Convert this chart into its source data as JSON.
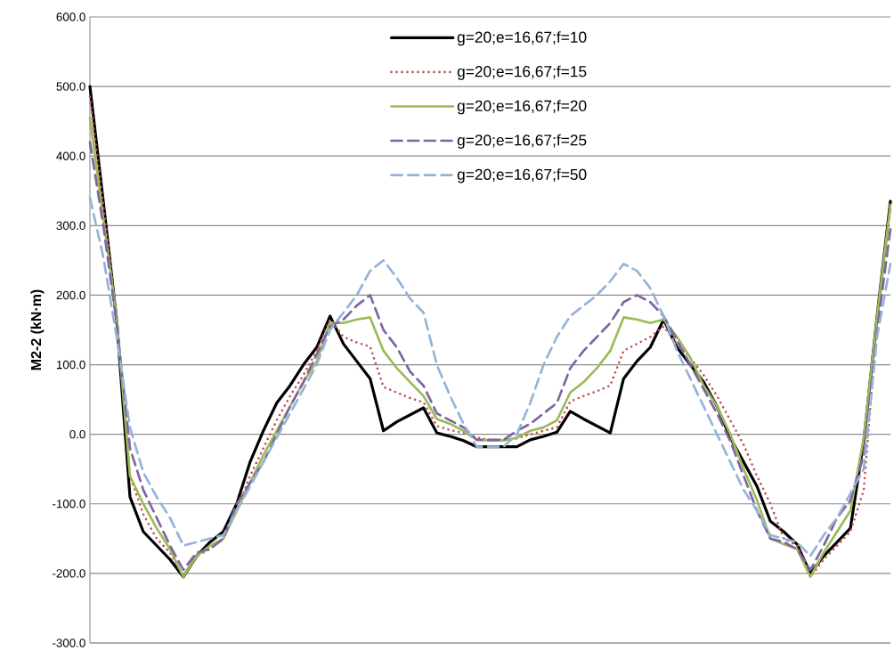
{
  "chart_data": {
    "type": "line",
    "ylabel": "M2-2 (kN·m)",
    "categories": [
      null,
      null,
      null,
      null,
      null,
      null,
      null,
      null,
      null,
      null,
      null,
      null,
      null,
      null,
      null,
      null,
      null,
      null,
      null,
      null,
      null,
      null,
      null,
      null,
      null,
      null,
      null,
      null,
      null,
      null,
      null,
      null,
      null,
      null,
      null,
      null,
      null,
      null,
      null,
      null,
      null,
      null,
      null,
      null,
      null,
      null,
      null,
      null,
      null,
      null,
      null,
      null,
      null,
      null,
      null,
      null,
      null,
      null,
      null,
      null,
      null
    ],
    "ylim": [
      -300,
      600
    ],
    "yticks": [
      {
        "value": -300,
        "label": "-300.0"
      },
      {
        "value": -200,
        "label": "-200.0"
      },
      {
        "value": -100,
        "label": "-100.0"
      },
      {
        "value": 0,
        "label": "0.0"
      },
      {
        "value": 100,
        "label": "100.0"
      },
      {
        "value": 200,
        "label": "200.0"
      },
      {
        "value": 300,
        "label": "300.0"
      },
      {
        "value": 400,
        "label": "400.0"
      },
      {
        "value": 500,
        "label": "500.0"
      },
      {
        "value": 600,
        "label": "600.0"
      }
    ],
    "grid": "y",
    "legend": "top",
    "tick_labels": "y",
    "marker": "none",
    "series": [
      {
        "name": "g=20;e=16,67;f=10",
        "color": "#000000",
        "line_style": "solid",
        "values": [
          500,
          335,
          165,
          -90,
          -140,
          -160,
          -180,
          -205,
          -175,
          -155,
          -140,
          -100,
          -40,
          5,
          45,
          70,
          100,
          125,
          170,
          130,
          105,
          80,
          5,
          18,
          28,
          38,
          2,
          -3,
          -9,
          -18,
          -18,
          -18,
          -18,
          -8,
          -3,
          3,
          33,
          22,
          12,
          2,
          80,
          105,
          125,
          165,
          125,
          100,
          75,
          40,
          -5,
          -40,
          -75,
          -125,
          -140,
          -158,
          -200,
          -175,
          -155,
          -135,
          -10,
          170,
          335
        ]
      },
      {
        "name": "g=20;e=16,67;f=15",
        "color": "#c0504d",
        "line_style": "dotted",
        "values": [
          485,
          330,
          170,
          -60,
          -115,
          -150,
          -170,
          -205,
          -175,
          -165,
          -150,
          -110,
          -60,
          -20,
          20,
          55,
          85,
          120,
          165,
          140,
          132,
          126,
          68,
          60,
          52,
          46,
          12,
          6,
          2,
          -5,
          -8,
          -8,
          -6,
          0,
          5,
          10,
          47,
          55,
          62,
          70,
          120,
          130,
          140,
          155,
          130,
          110,
          85,
          55,
          20,
          -15,
          -60,
          -100,
          -150,
          -160,
          -205,
          -180,
          -160,
          -140,
          -80,
          160,
          330
        ]
      },
      {
        "name": "g=20;e=16,67;f=20",
        "color": "#9bbb59",
        "line_style": "solid",
        "values": [
          455,
          310,
          170,
          -60,
          -100,
          -135,
          -165,
          -205,
          -175,
          -160,
          -150,
          -110,
          -70,
          -30,
          5,
          40,
          75,
          105,
          160,
          160,
          165,
          168,
          120,
          95,
          75,
          55,
          22,
          15,
          5,
          -8,
          -9,
          -9,
          -5,
          5,
          10,
          20,
          60,
          75,
          95,
          120,
          168,
          165,
          160,
          165,
          140,
          110,
          70,
          40,
          0,
          -50,
          -95,
          -150,
          -158,
          -165,
          -205,
          -170,
          -140,
          -110,
          -5,
          170,
          330
        ]
      },
      {
        "name": "g=20;e=16,67;f=25",
        "color": "#8064a2",
        "line_style": "dashed",
        "values": [
          420,
          300,
          160,
          -20,
          -80,
          -120,
          -160,
          -195,
          -170,
          -165,
          -150,
          -100,
          -70,
          -40,
          0,
          40,
          75,
          115,
          155,
          165,
          185,
          200,
          150,
          125,
          90,
          70,
          30,
          20,
          10,
          -8,
          -8,
          -8,
          5,
          15,
          30,
          45,
          95,
          120,
          140,
          160,
          190,
          200,
          190,
          170,
          135,
          100,
          65,
          30,
          -10,
          -60,
          -110,
          -150,
          -155,
          -165,
          -195,
          -160,
          -120,
          -95,
          -30,
          150,
          295
        ]
      },
      {
        "name": "g=20;e=16,67;f=50",
        "color": "#95b3d7",
        "line_style": "dashed",
        "values": [
          340,
          255,
          140,
          10,
          -55,
          -90,
          -120,
          -160,
          -155,
          -150,
          -145,
          -110,
          -75,
          -40,
          -5,
          30,
          65,
          100,
          150,
          175,
          200,
          235,
          250,
          225,
          195,
          175,
          100,
          55,
          15,
          -18,
          -18,
          -18,
          0,
          45,
          100,
          140,
          170,
          185,
          200,
          220,
          245,
          235,
          210,
          170,
          120,
          80,
          40,
          0,
          -40,
          -80,
          -110,
          -145,
          -150,
          -155,
          -175,
          -145,
          -120,
          -85,
          -50,
          140,
          245
        ]
      }
    ]
  }
}
